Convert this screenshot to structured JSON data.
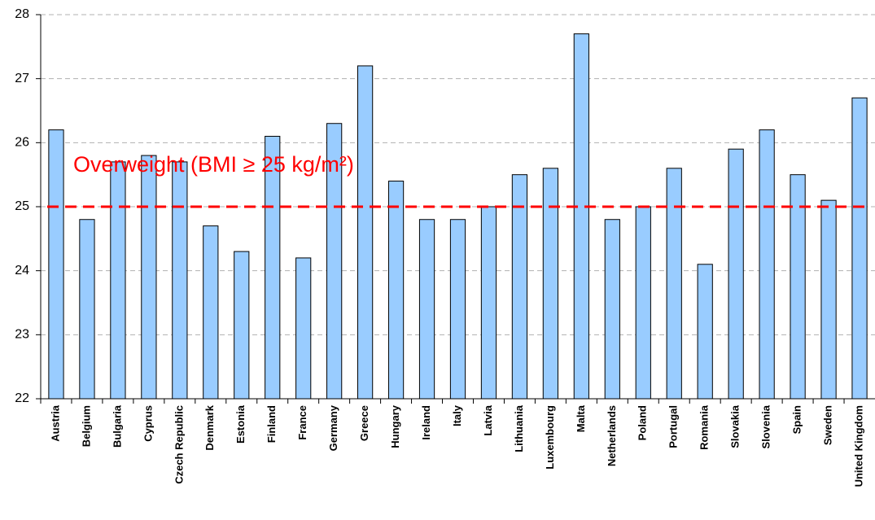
{
  "chart_data": {
    "type": "bar",
    "categories": [
      "Austria",
      "Belgium",
      "Bulgaria",
      "Cyprus",
      "Czech Republic",
      "Denmark",
      "Estonia",
      "Finland",
      "France",
      "Germany",
      "Greece",
      "Hungary",
      "Ireland",
      "Italy",
      "Latvia",
      "Lithuania",
      "Luxembourg",
      "Malta",
      "Netherlands",
      "Poland",
      "Portugal",
      "Romania",
      "Slovakia",
      "Slovenia",
      "Spain",
      "Sweden",
      "United Kingdom"
    ],
    "values": [
      26.2,
      24.8,
      25.7,
      25.8,
      25.7,
      24.7,
      24.3,
      26.1,
      24.2,
      26.3,
      27.2,
      25.4,
      24.8,
      24.8,
      25.0,
      25.5,
      25.6,
      27.7,
      24.8,
      25.0,
      25.6,
      24.1,
      25.9,
      26.2,
      25.5,
      25.1,
      26.7
    ],
    "color": "#99ccff",
    "ylim": [
      22,
      28
    ],
    "yticks": [
      22,
      23,
      24,
      25,
      26,
      27,
      28
    ],
    "grid": true,
    "reference_line": {
      "value": 25,
      "color": "#ff0000",
      "label": "Overweight (BMI ≥ 25 kg/m²)"
    }
  }
}
